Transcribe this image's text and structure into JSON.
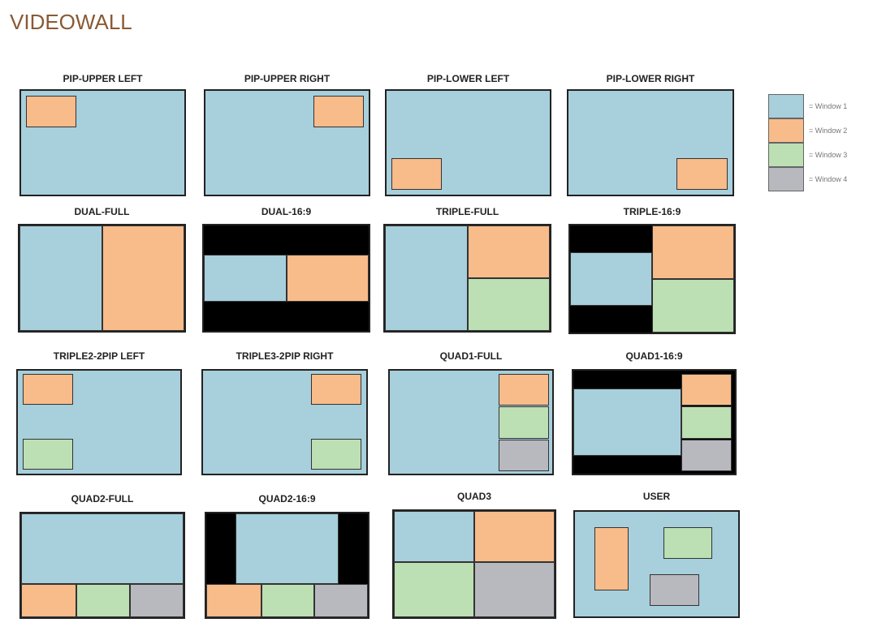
{
  "title": "VIDEOWALL",
  "colors": {
    "window1": "#a7cfdc",
    "window2": "#f8bb8a",
    "window3": "#bcdfb3",
    "window4": "#b8b8bf",
    "letterbox": "#000000"
  },
  "legend": [
    {
      "label": "= Window 1",
      "color": "#a7cfdc"
    },
    {
      "label": "= Window 2",
      "color": "#f8bb8a"
    },
    {
      "label": "= Window 3",
      "color": "#bcdfb3"
    },
    {
      "label": "= Window 4",
      "color": "#b8b8bf"
    }
  ],
  "layouts": [
    "PIP-UPPER LEFT",
    "PIP-UPPER RIGHT",
    "PIP-LOWER LEFT",
    "PIP-LOWER RIGHT",
    "DUAL-FULL",
    "DUAL-16:9",
    "TRIPLE-FULL",
    "TRIPLE-16:9",
    "TRIPLE2-2PIP LEFT",
    "TRIPLE3-2PIP RIGHT",
    "QUAD1-FULL",
    "QUAD1-16:9",
    "QUAD2-FULL",
    "QUAD2-16:9",
    "QUAD3",
    "USER"
  ]
}
